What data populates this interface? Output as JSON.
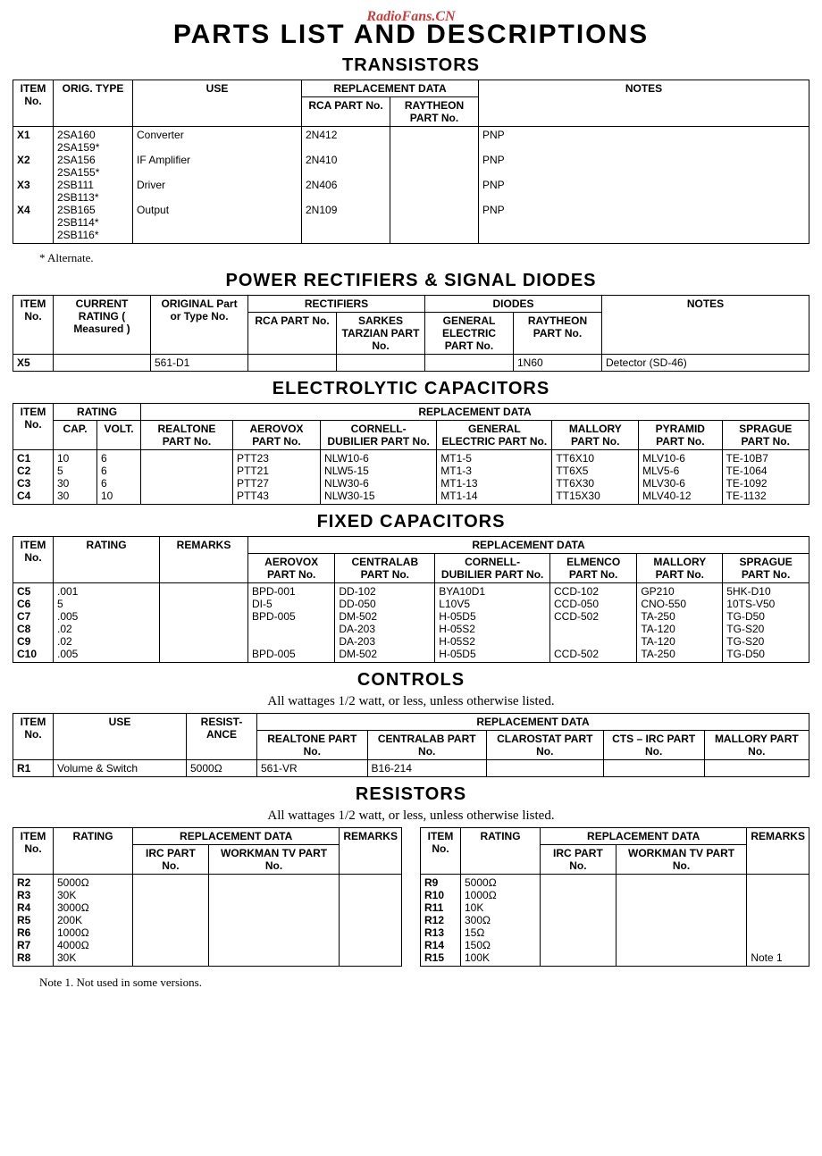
{
  "watermark": "RadioFans.CN",
  "main_title": "PARTS LIST AND DESCRIPTIONS",
  "sections": {
    "transistors": {
      "title": "TRANSISTORS",
      "headers": {
        "item": "ITEM\nNo.",
        "orig": "ORIG.\nTYPE",
        "use": "USE",
        "replacement": "REPLACEMENT DATA",
        "rca": "RCA\nPART No.",
        "raytheon": "RAYTHEON\nPART No.",
        "notes": "NOTES"
      },
      "rows": [
        {
          "item": "X1",
          "orig": "2SA160\n2SA159*",
          "use": "Converter",
          "rca": "2N412",
          "raytheon": "",
          "notes": "PNP"
        },
        {
          "item": "X2",
          "orig": "2SA156\n2SA155*",
          "use": "IF Amplifier",
          "rca": "2N410",
          "raytheon": "",
          "notes": "PNP"
        },
        {
          "item": "X3",
          "orig": "2SB111\n2SB113*",
          "use": "Driver",
          "rca": "2N406",
          "raytheon": "",
          "notes": "PNP"
        },
        {
          "item": "X4",
          "orig": "2SB165\n2SB114*\n2SB116*",
          "use": "Output",
          "rca": "2N109",
          "raytheon": "",
          "notes": "PNP"
        }
      ],
      "footnote": "* Alternate."
    },
    "rectifiers": {
      "title": "POWER RECTIFIERS & SIGNAL DIODES",
      "headers": {
        "item": "ITEM\nNo.",
        "current": "CURRENT\nRATING\n( Measured )",
        "orig": "ORIGINAL\nPart or\nType No.",
        "rect": "RECTIFIERS",
        "rca": "RCA\nPART No.",
        "sarkes": "SARKES\nTARZIAN\nPART No.",
        "diodes": "DIODES",
        "ge": "GENERAL\nELECTRIC\nPART No.",
        "raytheon": "RAYTHEON\nPART No.",
        "notes": "NOTES"
      },
      "rows": [
        {
          "item": "X5",
          "current": "",
          "orig": "561-D1",
          "rca": "",
          "sarkes": "",
          "ge": "",
          "raytheon": "1N60",
          "notes": "Detector (SD-46)"
        }
      ]
    },
    "electrolytic": {
      "title": "ELECTROLYTIC CAPACITORS",
      "headers": {
        "item": "ITEM\nNo.",
        "rating": "RATING",
        "cap": "CAP.",
        "volt": "VOLT.",
        "replacement": "REPLACEMENT DATA",
        "realtone": "REALTONE\nPART No.",
        "aerovox": "AEROVOX\nPART No.",
        "cornell": "CORNELL-\nDUBILIER\nPART No.",
        "ge": "GENERAL\nELECTRIC\nPART No.",
        "mallory": "MALLORY\nPART No.",
        "pyramid": "PYRAMID\nPART No.",
        "sprague": "SPRAGUE\nPART No."
      },
      "rows": [
        {
          "item": "C1",
          "cap": "10",
          "volt": "6",
          "realtone": "",
          "aerovox": "PTT23",
          "cornell": "NLW10-6",
          "ge": "MT1-5",
          "mallory": "TT6X10",
          "pyramid": "MLV10-6",
          "sprague": "TE-10B7"
        },
        {
          "item": "C2",
          "cap": "5",
          "volt": "6",
          "realtone": "",
          "aerovox": "PTT21",
          "cornell": "NLW5-15",
          "ge": "MT1-3",
          "mallory": "TT6X5",
          "pyramid": "MLV5-6",
          "sprague": "TE-1064"
        },
        {
          "item": "C3",
          "cap": "30",
          "volt": "6",
          "realtone": "",
          "aerovox": "PTT27",
          "cornell": "NLW30-6",
          "ge": "MT1-13",
          "mallory": "TT6X30",
          "pyramid": "MLV30-6",
          "sprague": "TE-1092"
        },
        {
          "item": "C4",
          "cap": "30",
          "volt": "10",
          "realtone": "",
          "aerovox": "PTT43",
          "cornell": "NLW30-15",
          "ge": "MT1-14",
          "mallory": "TT15X30",
          "pyramid": "MLV40-12",
          "sprague": "TE-1132"
        }
      ]
    },
    "fixed": {
      "title": "FIXED CAPACITORS",
      "headers": {
        "item": "ITEM\nNo.",
        "rating": "RATING",
        "remarks": "REMARKS",
        "replacement": "REPLACEMENT DATA",
        "aerovox": "AEROVOX\nPART No.",
        "centralab": "CENTRALAB\nPART No.",
        "cornell": "CORNELL-\nDUBILIER\nPART No.",
        "elmenco": "ELMENCO\nPART No.",
        "mallory": "MALLORY\nPART No.",
        "sprague": "SPRAGUE\nPART No."
      },
      "rows": [
        {
          "item": "C5",
          "rating": ".001",
          "remarks": "",
          "aerovox": "BPD-001",
          "centralab": "DD-102",
          "cornell": "BYA10D1",
          "elmenco": "CCD-102",
          "mallory": "GP210",
          "sprague": "5HK-D10"
        },
        {
          "item": "C6",
          "rating": "5",
          "remarks": "",
          "aerovox": "DI-5",
          "centralab": "DD-050",
          "cornell": "L10V5",
          "elmenco": "CCD-050",
          "mallory": "CNO-550",
          "sprague": "10TS-V50"
        },
        {
          "item": "C7",
          "rating": ".005",
          "remarks": "",
          "aerovox": "BPD-005",
          "centralab": "DM-502",
          "cornell": "H-05D5",
          "elmenco": "CCD-502",
          "mallory": "TA-250",
          "sprague": "TG-D50"
        },
        {
          "item": "C8",
          "rating": ".02",
          "remarks": "",
          "aerovox": "",
          "centralab": "DA-203",
          "cornell": "H-05S2",
          "elmenco": "",
          "mallory": "TA-120",
          "sprague": "TG-S20"
        },
        {
          "item": "C9",
          "rating": ".02",
          "remarks": "",
          "aerovox": "",
          "centralab": "DA-203",
          "cornell": "H-05S2",
          "elmenco": "",
          "mallory": "TA-120",
          "sprague": "TG-S20"
        },
        {
          "item": "C10",
          "rating": ".005",
          "remarks": "",
          "aerovox": "BPD-005",
          "centralab": "DM-502",
          "cornell": "H-05D5",
          "elmenco": "CCD-502",
          "mallory": "TA-250",
          "sprague": "TG-D50"
        }
      ]
    },
    "controls": {
      "title": "CONTROLS",
      "subnote": "All wattages 1/2 watt, or less, unless otherwise listed.",
      "headers": {
        "item": "ITEM\nNo.",
        "use": "USE",
        "resist": "RESIST-\nANCE",
        "replacement": "REPLACEMENT DATA",
        "realtone": "REALTONE\nPART No.",
        "centralab": "CENTRALAB\nPART No.",
        "clarostat": "CLAROSTAT\nPART No.",
        "cts": "CTS – IRC\nPART No.",
        "mallory": "MALLORY\nPART No."
      },
      "rows": [
        {
          "item": "R1",
          "use": "Volume & Switch",
          "resist": "5000Ω",
          "realtone": "561-VR",
          "centralab": "B16-214",
          "clarostat": "",
          "cts": "",
          "mallory": ""
        }
      ]
    },
    "resistors": {
      "title": "RESISTORS",
      "subnote": "All wattages 1/2 watt, or less, unless otherwise listed.",
      "headers": {
        "item": "ITEM\nNo.",
        "rating": "RATING",
        "replacement": "REPLACEMENT DATA",
        "irc": "IRC\nPART No.",
        "workman": "WORKMAN\nTV\nPART No.",
        "remarks": "REMARKS"
      },
      "left_rows": [
        {
          "item": "R2",
          "rating": "5000Ω",
          "irc": "",
          "workman": "",
          "remarks": ""
        },
        {
          "item": "R3",
          "rating": "30K",
          "irc": "",
          "workman": "",
          "remarks": ""
        },
        {
          "item": "R4",
          "rating": "3000Ω",
          "irc": "",
          "workman": "",
          "remarks": ""
        },
        {
          "item": "R5",
          "rating": "200K",
          "irc": "",
          "workman": "",
          "remarks": ""
        },
        {
          "item": "R6",
          "rating": "1000Ω",
          "irc": "",
          "workman": "",
          "remarks": ""
        },
        {
          "item": "R7",
          "rating": "4000Ω",
          "irc": "",
          "workman": "",
          "remarks": ""
        },
        {
          "item": "R8",
          "rating": "30K",
          "irc": "",
          "workman": "",
          "remarks": ""
        }
      ],
      "right_rows": [
        {
          "item": "R9",
          "rating": "5000Ω",
          "irc": "",
          "workman": "",
          "remarks": ""
        },
        {
          "item": "R10",
          "rating": "1000Ω",
          "irc": "",
          "workman": "",
          "remarks": ""
        },
        {
          "item": "R11",
          "rating": "10K",
          "irc": "",
          "workman": "",
          "remarks": ""
        },
        {
          "item": "R12",
          "rating": "300Ω",
          "irc": "",
          "workman": "",
          "remarks": ""
        },
        {
          "item": "R13",
          "rating": "15Ω",
          "irc": "",
          "workman": "",
          "remarks": ""
        },
        {
          "item": "R14",
          "rating": "150Ω",
          "irc": "",
          "workman": "",
          "remarks": ""
        },
        {
          "item": "R15",
          "rating": "100K",
          "irc": "",
          "workman": "",
          "remarks": "Note 1"
        }
      ],
      "footnote": "Note 1. Not used in some versions."
    }
  }
}
